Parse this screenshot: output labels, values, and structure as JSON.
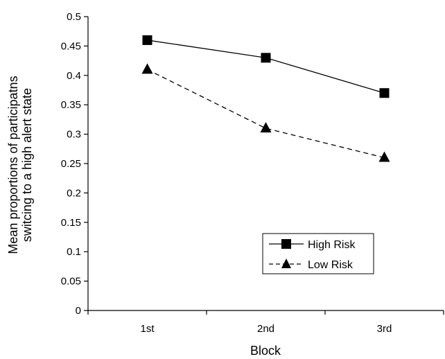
{
  "chart_data": {
    "type": "line",
    "categories": [
      "1st",
      "2nd",
      "3rd"
    ],
    "series": [
      {
        "name": "High Risk",
        "values": [
          0.46,
          0.43,
          0.37
        ],
        "marker": "square",
        "line": "solid",
        "color": "#000000"
      },
      {
        "name": "Low Risk",
        "values": [
          0.41,
          0.31,
          0.26
        ],
        "marker": "triangle",
        "line": "dashed",
        "color": "#000000"
      }
    ],
    "xlabel": "Block",
    "ylabel_lines": [
      "Mean proportions of participatns",
      "switcing to a high alert state"
    ],
    "ylim": [
      0,
      0.5
    ],
    "yticks": [
      "0",
      "0.05",
      "0.1",
      "0.15",
      "0.2",
      "0.25",
      "0.3",
      "0.35",
      "0.4",
      "0.45",
      "0.5"
    ],
    "grid": false,
    "legend_position": "lower-right"
  }
}
